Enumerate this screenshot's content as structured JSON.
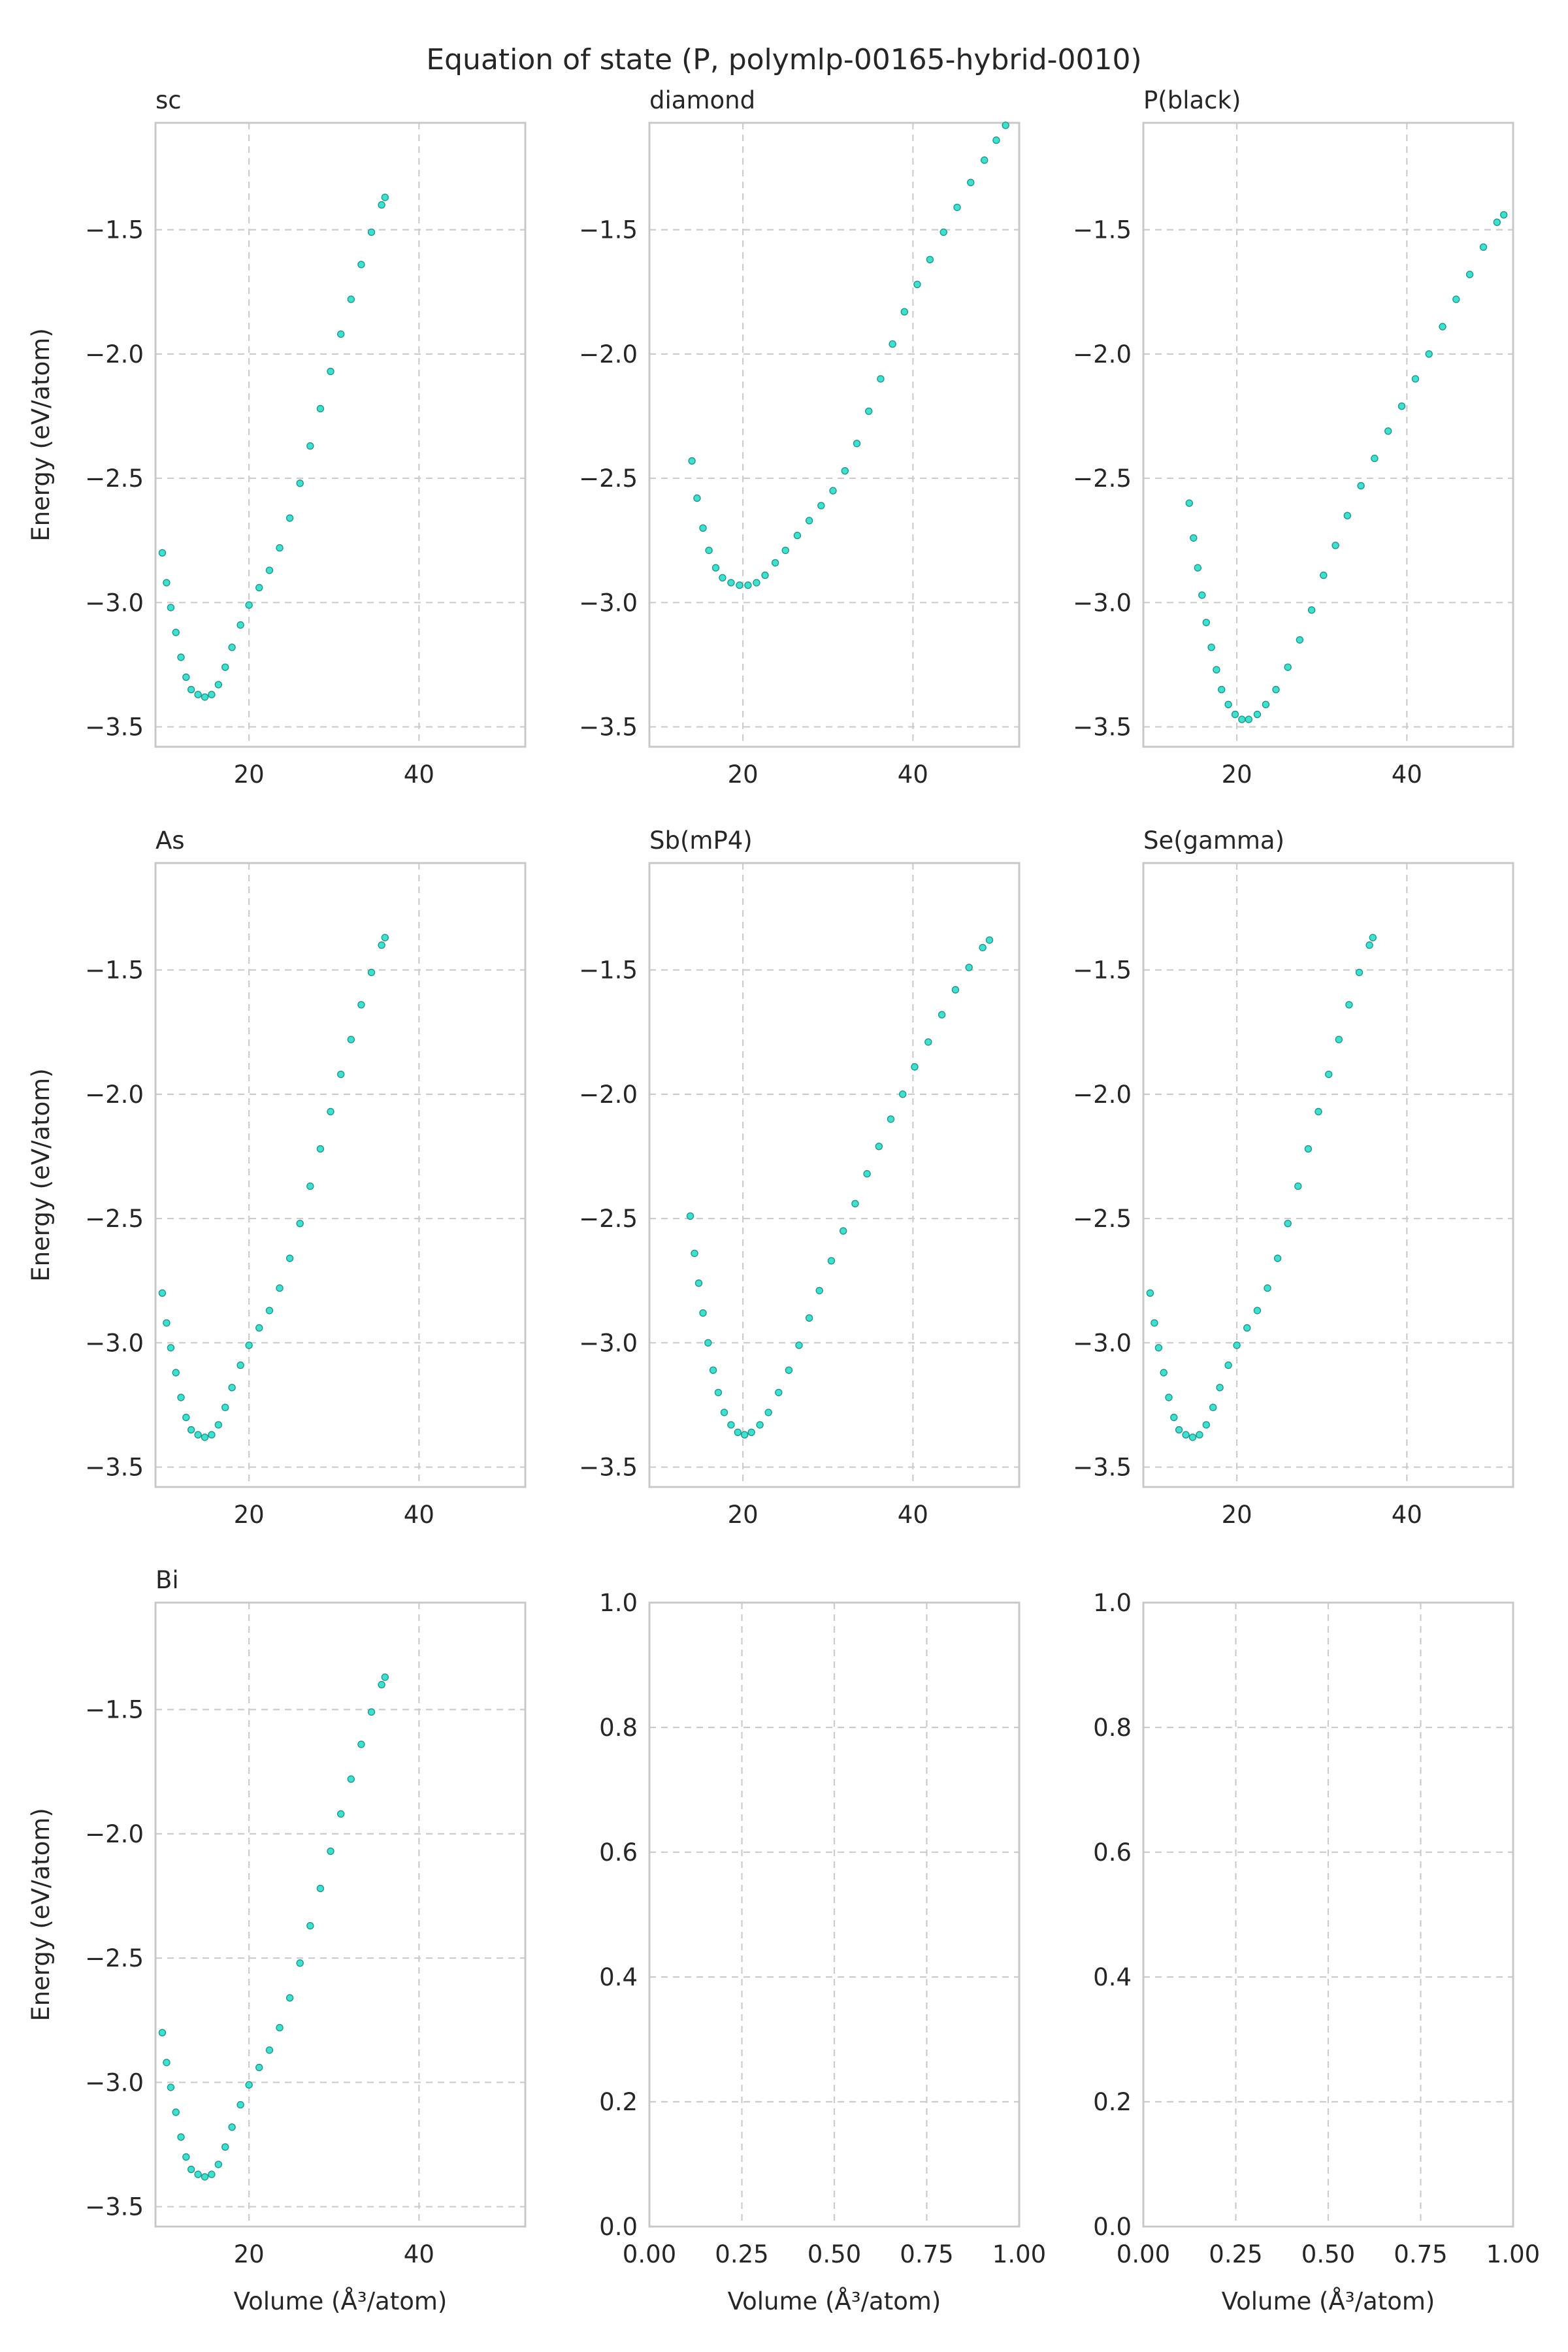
{
  "figure": {
    "title": "Equation of state (P, polymlp-00165-hybrid-0010)"
  },
  "chart_data": [
    {
      "type": "scatter",
      "title": "sc",
      "xlabel": "",
      "ylabel": "Energy (eV/atom)",
      "xlim": [
        9,
        52.5
      ],
      "ylim": [
        -3.58,
        -1.07
      ],
      "xticks": [
        20,
        40
      ],
      "yticks": [
        -1.5,
        -2.0,
        -2.5,
        -3.0,
        -3.5
      ],
      "grid": true,
      "color": "#40e0d0",
      "points": [
        [
          9.8,
          -2.8
        ],
        [
          10.3,
          -2.92
        ],
        [
          10.8,
          -3.02
        ],
        [
          11.4,
          -3.12
        ],
        [
          12.0,
          -3.22
        ],
        [
          12.6,
          -3.3
        ],
        [
          13.2,
          -3.35
        ],
        [
          14.0,
          -3.37
        ],
        [
          14.8,
          -3.38
        ],
        [
          15.6,
          -3.37
        ],
        [
          16.4,
          -3.33
        ],
        [
          17.2,
          -3.26
        ],
        [
          18.0,
          -3.18
        ],
        [
          19.0,
          -3.09
        ],
        [
          20.0,
          -3.01
        ],
        [
          21.2,
          -2.94
        ],
        [
          22.4,
          -2.87
        ],
        [
          23.6,
          -2.78
        ],
        [
          24.8,
          -2.66
        ],
        [
          26.0,
          -2.52
        ],
        [
          27.2,
          -2.37
        ],
        [
          28.4,
          -2.22
        ],
        [
          29.6,
          -2.07
        ],
        [
          30.8,
          -1.92
        ],
        [
          32.0,
          -1.78
        ],
        [
          33.2,
          -1.64
        ],
        [
          34.4,
          -1.51
        ],
        [
          35.6,
          -1.4
        ],
        [
          36.0,
          -1.37
        ]
      ]
    },
    {
      "type": "scatter",
      "title": "diamond",
      "xlabel": "",
      "ylabel": "",
      "xlim": [
        9,
        52.5
      ],
      "ylim": [
        -3.58,
        -1.07
      ],
      "xticks": [
        20,
        40
      ],
      "yticks": [
        -1.5,
        -2.0,
        -2.5,
        -3.0,
        -3.5
      ],
      "grid": true,
      "color": "#40e0d0",
      "points": [
        [
          14.0,
          -2.43
        ],
        [
          14.6,
          -2.58
        ],
        [
          15.3,
          -2.7
        ],
        [
          16.0,
          -2.79
        ],
        [
          16.8,
          -2.86
        ],
        [
          17.6,
          -2.9
        ],
        [
          18.6,
          -2.92
        ],
        [
          19.6,
          -2.93
        ],
        [
          20.6,
          -2.93
        ],
        [
          21.6,
          -2.92
        ],
        [
          22.6,
          -2.89
        ],
        [
          23.8,
          -2.84
        ],
        [
          25.0,
          -2.79
        ],
        [
          26.4,
          -2.73
        ],
        [
          27.8,
          -2.67
        ],
        [
          29.2,
          -2.61
        ],
        [
          30.6,
          -2.55
        ],
        [
          32.0,
          -2.47
        ],
        [
          33.4,
          -2.36
        ],
        [
          34.8,
          -2.23
        ],
        [
          36.2,
          -2.1
        ],
        [
          37.6,
          -1.96
        ],
        [
          39.0,
          -1.83
        ],
        [
          40.5,
          -1.72
        ],
        [
          42.0,
          -1.62
        ],
        [
          43.6,
          -1.51
        ],
        [
          45.2,
          -1.41
        ],
        [
          46.8,
          -1.31
        ],
        [
          48.4,
          -1.22
        ],
        [
          49.8,
          -1.14
        ],
        [
          50.9,
          -1.08
        ]
      ]
    },
    {
      "type": "scatter",
      "title": "P(black)",
      "xlabel": "",
      "ylabel": "",
      "xlim": [
        9,
        52.5
      ],
      "ylim": [
        -3.58,
        -1.07
      ],
      "xticks": [
        20,
        40
      ],
      "yticks": [
        -1.5,
        -2.0,
        -2.5,
        -3.0,
        -3.5
      ],
      "grid": true,
      "color": "#40e0d0",
      "points": [
        [
          14.4,
          -2.6
        ],
        [
          14.9,
          -2.74
        ],
        [
          15.4,
          -2.86
        ],
        [
          15.9,
          -2.97
        ],
        [
          16.4,
          -3.08
        ],
        [
          17.0,
          -3.18
        ],
        [
          17.6,
          -3.27
        ],
        [
          18.2,
          -3.35
        ],
        [
          19.0,
          -3.41
        ],
        [
          19.8,
          -3.45
        ],
        [
          20.6,
          -3.47
        ],
        [
          21.4,
          -3.47
        ],
        [
          22.4,
          -3.45
        ],
        [
          23.4,
          -3.41
        ],
        [
          24.6,
          -3.35
        ],
        [
          26.0,
          -3.26
        ],
        [
          27.4,
          -3.15
        ],
        [
          28.8,
          -3.03
        ],
        [
          30.2,
          -2.89
        ],
        [
          31.6,
          -2.77
        ],
        [
          33.0,
          -2.65
        ],
        [
          34.6,
          -2.53
        ],
        [
          36.2,
          -2.42
        ],
        [
          37.8,
          -2.31
        ],
        [
          39.4,
          -2.21
        ],
        [
          41.0,
          -2.1
        ],
        [
          42.6,
          -2.0
        ],
        [
          44.2,
          -1.89
        ],
        [
          45.8,
          -1.78
        ],
        [
          47.4,
          -1.68
        ],
        [
          49.0,
          -1.57
        ],
        [
          50.6,
          -1.47
        ],
        [
          51.4,
          -1.44
        ]
      ]
    },
    {
      "type": "scatter",
      "title": "As",
      "xlabel": "",
      "ylabel": "Energy (eV/atom)",
      "xlim": [
        9,
        52.5
      ],
      "ylim": [
        -3.58,
        -1.07
      ],
      "xticks": [
        20,
        40
      ],
      "yticks": [
        -1.5,
        -2.0,
        -2.5,
        -3.0,
        -3.5
      ],
      "grid": true,
      "color": "#40e0d0",
      "points": [
        [
          9.8,
          -2.8
        ],
        [
          10.3,
          -2.92
        ],
        [
          10.8,
          -3.02
        ],
        [
          11.4,
          -3.12
        ],
        [
          12.0,
          -3.22
        ],
        [
          12.6,
          -3.3
        ],
        [
          13.2,
          -3.35
        ],
        [
          14.0,
          -3.37
        ],
        [
          14.8,
          -3.38
        ],
        [
          15.6,
          -3.37
        ],
        [
          16.4,
          -3.33
        ],
        [
          17.2,
          -3.26
        ],
        [
          18.0,
          -3.18
        ],
        [
          19.0,
          -3.09
        ],
        [
          20.0,
          -3.01
        ],
        [
          21.2,
          -2.94
        ],
        [
          22.4,
          -2.87
        ],
        [
          23.6,
          -2.78
        ],
        [
          24.8,
          -2.66
        ],
        [
          26.0,
          -2.52
        ],
        [
          27.2,
          -2.37
        ],
        [
          28.4,
          -2.22
        ],
        [
          29.6,
          -2.07
        ],
        [
          30.8,
          -1.92
        ],
        [
          32.0,
          -1.78
        ],
        [
          33.2,
          -1.64
        ],
        [
          34.4,
          -1.51
        ],
        [
          35.6,
          -1.4
        ],
        [
          36.0,
          -1.37
        ]
      ]
    },
    {
      "type": "scatter",
      "title": "Sb(mP4)",
      "xlabel": "",
      "ylabel": "",
      "xlim": [
        9,
        52.5
      ],
      "ylim": [
        -3.58,
        -1.07
      ],
      "xticks": [
        20,
        40
      ],
      "yticks": [
        -1.5,
        -2.0,
        -2.5,
        -3.0,
        -3.5
      ],
      "grid": true,
      "color": "#40e0d0",
      "points": [
        [
          13.8,
          -2.49
        ],
        [
          14.3,
          -2.64
        ],
        [
          14.8,
          -2.76
        ],
        [
          15.3,
          -2.88
        ],
        [
          15.9,
          -3.0
        ],
        [
          16.5,
          -3.11
        ],
        [
          17.1,
          -3.2
        ],
        [
          17.8,
          -3.28
        ],
        [
          18.6,
          -3.33
        ],
        [
          19.4,
          -3.36
        ],
        [
          20.2,
          -3.37
        ],
        [
          21.0,
          -3.36
        ],
        [
          22.0,
          -3.33
        ],
        [
          23.0,
          -3.28
        ],
        [
          24.2,
          -3.2
        ],
        [
          25.4,
          -3.11
        ],
        [
          26.6,
          -3.01
        ],
        [
          27.8,
          -2.9
        ],
        [
          29.0,
          -2.79
        ],
        [
          30.4,
          -2.67
        ],
        [
          31.8,
          -2.55
        ],
        [
          33.2,
          -2.44
        ],
        [
          34.6,
          -2.32
        ],
        [
          36.0,
          -2.21
        ],
        [
          37.4,
          -2.1
        ],
        [
          38.8,
          -2.0
        ],
        [
          40.2,
          -1.89
        ],
        [
          41.8,
          -1.79
        ],
        [
          43.4,
          -1.68
        ],
        [
          45.0,
          -1.58
        ],
        [
          46.6,
          -1.49
        ],
        [
          48.2,
          -1.41
        ],
        [
          49.0,
          -1.38
        ]
      ]
    },
    {
      "type": "scatter",
      "title": "Se(gamma)",
      "xlabel": "",
      "ylabel": "",
      "xlim": [
        9,
        52.5
      ],
      "ylim": [
        -3.58,
        -1.07
      ],
      "xticks": [
        20,
        40
      ],
      "yticks": [
        -1.5,
        -2.0,
        -2.5,
        -3.0,
        -3.5
      ],
      "grid": true,
      "color": "#40e0d0",
      "points": [
        [
          9.8,
          -2.8
        ],
        [
          10.3,
          -2.92
        ],
        [
          10.8,
          -3.02
        ],
        [
          11.4,
          -3.12
        ],
        [
          12.0,
          -3.22
        ],
        [
          12.6,
          -3.3
        ],
        [
          13.2,
          -3.35
        ],
        [
          14.0,
          -3.37
        ],
        [
          14.8,
          -3.38
        ],
        [
          15.6,
          -3.37
        ],
        [
          16.4,
          -3.33
        ],
        [
          17.2,
          -3.26
        ],
        [
          18.0,
          -3.18
        ],
        [
          19.0,
          -3.09
        ],
        [
          20.0,
          -3.01
        ],
        [
          21.2,
          -2.94
        ],
        [
          22.4,
          -2.87
        ],
        [
          23.6,
          -2.78
        ],
        [
          24.8,
          -2.66
        ],
        [
          26.0,
          -2.52
        ],
        [
          27.2,
          -2.37
        ],
        [
          28.4,
          -2.22
        ],
        [
          29.6,
          -2.07
        ],
        [
          30.8,
          -1.92
        ],
        [
          32.0,
          -1.78
        ],
        [
          33.2,
          -1.64
        ],
        [
          34.4,
          -1.51
        ],
        [
          35.6,
          -1.4
        ],
        [
          36.0,
          -1.37
        ]
      ]
    },
    {
      "type": "scatter",
      "title": "Bi",
      "xlabel": "Volume (Å³/atom)",
      "ylabel": "Energy (eV/atom)",
      "xlim": [
        9,
        52.5
      ],
      "ylim": [
        -3.58,
        -1.07
      ],
      "xticks": [
        20,
        40
      ],
      "yticks": [
        -1.5,
        -2.0,
        -2.5,
        -3.0,
        -3.5
      ],
      "grid": true,
      "color": "#40e0d0",
      "points": [
        [
          9.8,
          -2.8
        ],
        [
          10.3,
          -2.92
        ],
        [
          10.8,
          -3.02
        ],
        [
          11.4,
          -3.12
        ],
        [
          12.0,
          -3.22
        ],
        [
          12.6,
          -3.3
        ],
        [
          13.2,
          -3.35
        ],
        [
          14.0,
          -3.37
        ],
        [
          14.8,
          -3.38
        ],
        [
          15.6,
          -3.37
        ],
        [
          16.4,
          -3.33
        ],
        [
          17.2,
          -3.26
        ],
        [
          18.0,
          -3.18
        ],
        [
          19.0,
          -3.09
        ],
        [
          20.0,
          -3.01
        ],
        [
          21.2,
          -2.94
        ],
        [
          22.4,
          -2.87
        ],
        [
          23.6,
          -2.78
        ],
        [
          24.8,
          -2.66
        ],
        [
          26.0,
          -2.52
        ],
        [
          27.2,
          -2.37
        ],
        [
          28.4,
          -2.22
        ],
        [
          29.6,
          -2.07
        ],
        [
          30.8,
          -1.92
        ],
        [
          32.0,
          -1.78
        ],
        [
          33.2,
          -1.64
        ],
        [
          34.4,
          -1.51
        ],
        [
          35.6,
          -1.4
        ],
        [
          36.0,
          -1.37
        ]
      ]
    },
    {
      "type": "scatter",
      "title": "",
      "xlabel": "Volume (Å³/atom)",
      "ylabel": "",
      "xlim": [
        0,
        1
      ],
      "ylim": [
        0,
        1
      ],
      "xticks": [
        0.0,
        0.25,
        0.5,
        0.75,
        1.0
      ],
      "xticklabels": [
        "0.00",
        "0.25",
        "0.50",
        "0.75",
        "1.00"
      ],
      "yticks": [
        0.0,
        0.2,
        0.4,
        0.6,
        0.8,
        1.0
      ],
      "yticklabels": [
        "0.0",
        "0.2",
        "0.4",
        "0.6",
        "0.8",
        "1.0"
      ],
      "grid": true,
      "points": []
    },
    {
      "type": "scatter",
      "title": "",
      "xlabel": "Volume (Å³/atom)",
      "ylabel": "",
      "xlim": [
        0,
        1
      ],
      "ylim": [
        0,
        1
      ],
      "xticks": [
        0.0,
        0.25,
        0.5,
        0.75,
        1.0
      ],
      "xticklabels": [
        "0.00",
        "0.25",
        "0.50",
        "0.75",
        "1.00"
      ],
      "yticks": [
        0.0,
        0.2,
        0.4,
        0.6,
        0.8,
        1.0
      ],
      "yticklabels": [
        "0.0",
        "0.2",
        "0.4",
        "0.6",
        "0.8",
        "1.0"
      ],
      "grid": true,
      "points": []
    }
  ]
}
